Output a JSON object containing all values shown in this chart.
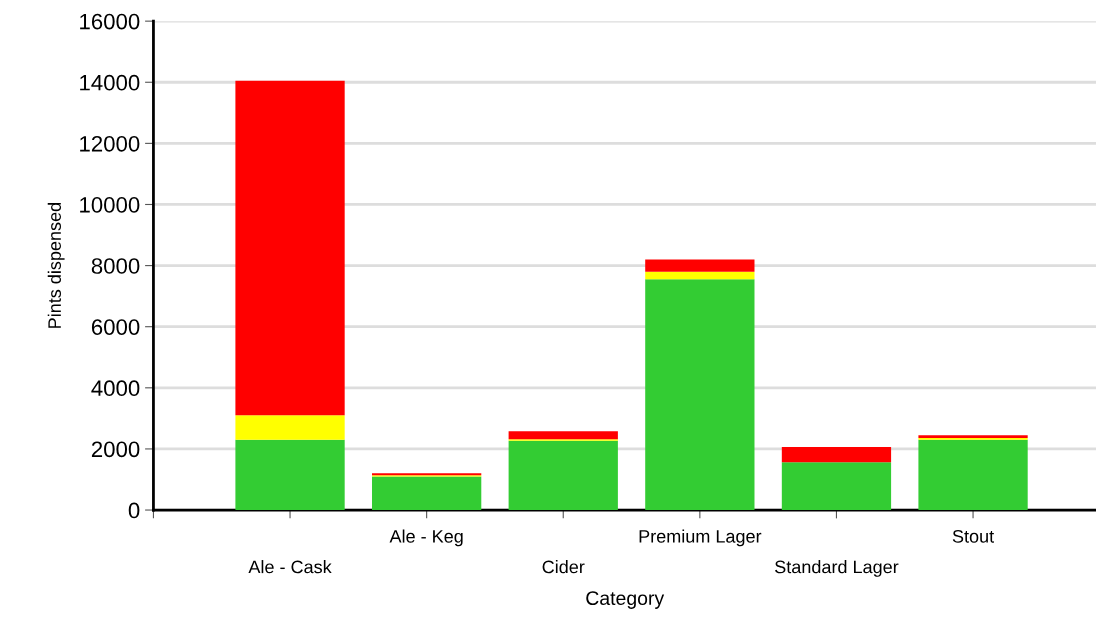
{
  "chart_data": {
    "type": "bar",
    "stacked": true,
    "xlabel": "Category",
    "ylabel": "Pints dispensed",
    "categories": [
      "Ale - Cask",
      "Ale - Keg",
      "Cider",
      "Premium Lager",
      "Standard Lager",
      "Stout"
    ],
    "series": [
      {
        "color": "#33cc33",
        "values": [
          2300,
          1100,
          2270,
          7550,
          1560,
          2300
        ]
      },
      {
        "color": "#ffff00",
        "values": [
          800,
          40,
          50,
          250,
          0,
          60
        ]
      },
      {
        "color": "#ff0000",
        "values": [
          10950,
          60,
          260,
          400,
          500,
          90
        ]
      }
    ],
    "ylim": [
      0,
      16000
    ],
    "yticks": [
      0,
      2000,
      4000,
      6000,
      8000,
      10000,
      12000,
      14000,
      16000
    ],
    "grid": "y"
  }
}
